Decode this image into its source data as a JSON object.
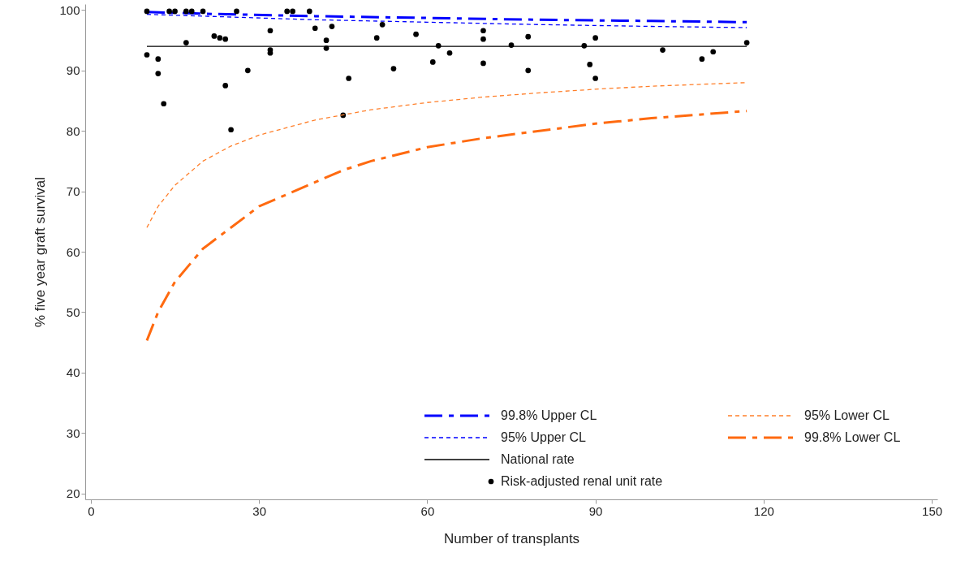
{
  "chart_data": {
    "type": "line",
    "xlabel": "Number of transplants",
    "ylabel": "% five year graft survival",
    "xlim": [
      -1,
      151
    ],
    "xticks": [
      0,
      30,
      60,
      90,
      120,
      150
    ],
    "ylim": [
      19,
      101
    ],
    "yticks": [
      20,
      30,
      40,
      50,
      60,
      70,
      80,
      90,
      100
    ],
    "grid": false,
    "legend": "bottom right",
    "series": [
      {
        "name": "99.8% Upper CL",
        "color": "#0000ff",
        "line_style": "dashdot",
        "x": [
          10,
          20,
          40,
          60,
          80,
          100,
          117
        ],
        "values": [
          99.7,
          99.4,
          99.0,
          98.7,
          98.4,
          98.2,
          98.0
        ]
      },
      {
        "name": "95% Upper CL",
        "color": "#0000ff",
        "line_style": "dashed",
        "x": [
          10,
          20,
          40,
          60,
          80,
          100,
          117
        ],
        "values": [
          99.3,
          99.0,
          98.4,
          98.0,
          97.6,
          97.3,
          97.1
        ]
      },
      {
        "name": "National rate",
        "color": "#000000",
        "line_style": "solid",
        "x": [
          10,
          117
        ],
        "values": [
          94.0,
          94.0
        ]
      },
      {
        "name": "Risk-adjusted renal unit rate",
        "type": "scatter",
        "color": "#000000",
        "marker": "circle",
        "x": [
          10,
          10,
          12,
          12,
          13,
          14,
          15,
          17,
          17,
          18,
          20,
          22,
          23,
          24,
          24,
          25,
          26,
          28,
          32,
          32,
          32,
          35,
          36,
          39,
          40,
          42,
          42,
          43,
          45,
          46,
          51,
          52,
          54,
          58,
          61,
          62,
          64,
          70,
          70,
          70,
          75,
          78,
          78,
          88,
          89,
          90,
          90,
          102,
          109,
          111,
          117
        ],
        "values": [
          99.8,
          92.6,
          91.9,
          89.5,
          84.5,
          99.8,
          99.8,
          99.8,
          94.6,
          99.8,
          99.8,
          95.7,
          95.4,
          95.2,
          87.5,
          80.2,
          99.8,
          90.0,
          96.6,
          93.4,
          92.9,
          99.8,
          99.8,
          99.8,
          97.0,
          95.0,
          93.7,
          97.3,
          82.6,
          88.7,
          95.4,
          97.6,
          90.3,
          96.0,
          91.4,
          94.1,
          92.9,
          96.6,
          95.2,
          91.2,
          94.2,
          95.6,
          90.0,
          94.1,
          91.0,
          95.4,
          88.7,
          93.4,
          91.9,
          93.1,
          94.6
        ]
      },
      {
        "name": "95% Lower CL",
        "color": "#ff7f2a",
        "line_style": "dashed",
        "x": [
          10,
          12,
          15,
          20,
          25,
          30,
          40,
          50,
          60,
          70,
          80,
          90,
          100,
          117
        ],
        "values": [
          64.0,
          67.5,
          71.0,
          75.0,
          77.5,
          79.3,
          81.8,
          83.5,
          84.7,
          85.6,
          86.3,
          86.9,
          87.4,
          88.0
        ]
      },
      {
        "name": "99.8% Lower CL",
        "color": "#ff6a10",
        "line_style": "dashdot",
        "x": [
          10,
          12,
          15,
          20,
          25,
          30,
          40,
          45,
          50,
          60,
          70,
          80,
          90,
          100,
          117
        ],
        "values": [
          45.3,
          50.0,
          55.0,
          60.5,
          64.0,
          67.5,
          71.5,
          73.5,
          75.0,
          77.3,
          78.8,
          80.0,
          81.2,
          82.1,
          83.3
        ]
      }
    ]
  }
}
